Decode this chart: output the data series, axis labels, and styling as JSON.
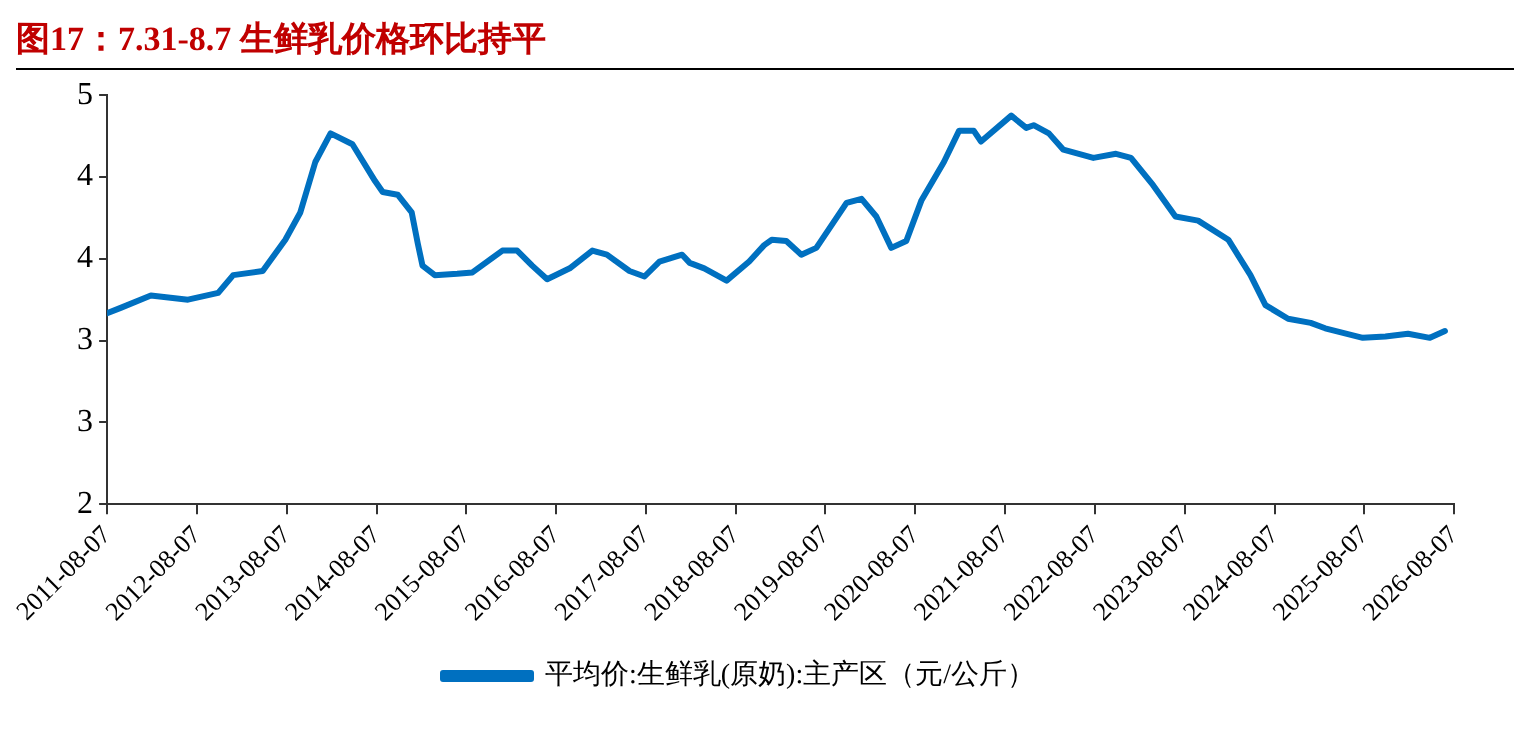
{
  "chart_data": {
    "type": "line",
    "title": "图17：7.31-8.7 生鲜乳价格环比持平",
    "x": [
      "2011-08-07",
      "2011-10",
      "2012-02",
      "2012-07",
      "2012-11",
      "2013-01",
      "2013-05",
      "2013-08",
      "2013-10",
      "2013-12",
      "2014-02",
      "2014-05",
      "2014-08",
      "2014-09",
      "2014-11",
      "2014-12-28",
      "2015-01-22",
      "2015-02-10",
      "2015-04",
      "2015-07",
      "2015-09",
      "2016-01",
      "2016-03",
      "2016-05",
      "2016-07",
      "2016-10",
      "2017-01",
      "2017-03",
      "2017-06",
      "2017-08",
      "2017-10",
      "2018-01",
      "2018-02",
      "2018-04",
      "2018-07",
      "2018-10",
      "2018-12",
      "2019-01",
      "2019-03",
      "2019-05",
      "2019-07",
      "2019-11",
      "2020-01",
      "2020-03",
      "2020-05",
      "2020-07",
      "2020-09",
      "2020-12",
      "2021-02",
      "2021-04",
      "2021-05",
      "2021-09",
      "2021-11",
      "2021-12",
      "2022-02",
      "2022-04",
      "2022-08",
      "2022-11",
      "2023-01",
      "2023-04",
      "2023-07",
      "2023-10",
      "2024-02",
      "2024-05",
      "2024-07",
      "2024-10",
      "2025-01",
      "2025-03",
      "2025-08",
      "2025-11",
      "2026-02",
      "2026-05",
      "2026-07"
    ],
    "series": [
      {
        "name": "平均价:生鲜乳(原奶):主产区（元/公斤）",
        "color": "#0070c0",
        "values": [
          3.4,
          3.44,
          3.53,
          3.5,
          3.55,
          3.68,
          3.71,
          3.94,
          4.14,
          4.51,
          4.72,
          4.64,
          4.37,
          4.29,
          4.27,
          4.14,
          3.91,
          3.75,
          3.68,
          3.69,
          3.7,
          3.86,
          3.86,
          3.75,
          3.65,
          3.73,
          3.86,
          3.83,
          3.71,
          3.67,
          3.78,
          3.83,
          3.77,
          3.73,
          3.64,
          3.78,
          3.9,
          3.94,
          3.93,
          3.83,
          3.88,
          4.21,
          4.24,
          4.11,
          3.88,
          3.93,
          4.23,
          4.51,
          4.74,
          4.74,
          4.66,
          4.85,
          4.76,
          4.78,
          4.72,
          4.6,
          4.54,
          4.57,
          4.54,
          4.34,
          4.11,
          4.08,
          3.94,
          3.68,
          3.46,
          3.36,
          3.33,
          3.29,
          3.22,
          3.23,
          3.25,
          3.22,
          3.27
        ]
      }
    ],
    "xlim": [
      "2011-08-07",
      "2026-08-07"
    ],
    "xticks": [
      "2011-08-07",
      "2012-08-07",
      "2013-08-07",
      "2014-08-07",
      "2015-08-07",
      "2016-08-07",
      "2017-08-07",
      "2018-08-07",
      "2019-08-07",
      "2020-08-07",
      "2021-08-07",
      "2022-08-07",
      "2023-08-07",
      "2024-08-07",
      "2025-08-07",
      "2026-08-07"
    ],
    "ylim": [
      2,
      5
    ],
    "yticks": [
      2,
      {
        "value": 2.6,
        "label": "3"
      },
      {
        "value": 3.2,
        "label": "3"
      },
      {
        "value": 3.8,
        "label": "4"
      },
      {
        "value": 4.4,
        "label": "4"
      },
      5
    ],
    "grid": false,
    "legend": "bottom",
    "marker": "none",
    "line_style": "solid"
  }
}
